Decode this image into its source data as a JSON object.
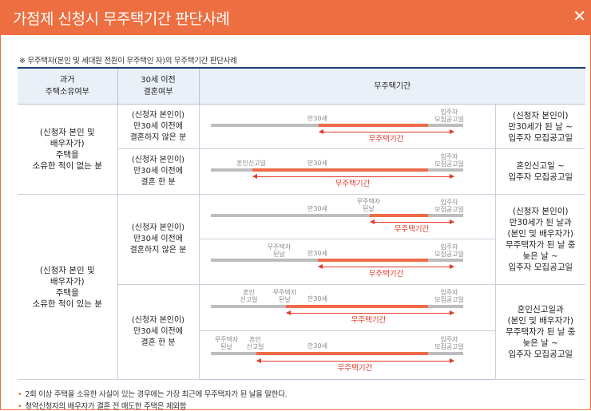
{
  "header": {
    "title": "가점제 신청시 무주택기간 판단사례",
    "close_glyph": "✕"
  },
  "note": "※ 무주택자(본인 및 세대원 전원이 무주택인 자)의 무주택기간 판단사례",
  "columns": [
    "과거\n주택소유여부",
    "30세 이전\n결혼여부",
    "무주택기간"
  ],
  "groups": [
    {
      "ownership": "(신청자 본인 및\n배우자가)\n주택을\n소유한 적이 없는 분",
      "subs": [
        {
          "marriage": "(신청자 본인이)\n만30세 이전에\n결혼하지 않은 분",
          "result": "(신청자 본인이)\n만30세가 된 날 ~\n입주자 모집공고일"
        },
        {
          "marriage": "(신청자 본인이)\n만30세 이전에\n결혼 한 분",
          "result": "혼인신고일 ~\n입주자 모집공고일"
        }
      ]
    },
    {
      "ownership": "(신청자 본인 및\n배우자가)\n주택을\n소유한 적이 있는 분",
      "subs": [
        {
          "marriage": "(신청자 본인이)\n만30세 이전에\n결혼하지 않은 분",
          "result": "(신청자 본인이)\n만30세가 된 날과\n(본인 및 배우자가)\n무주택자가 된 날 중\n늦은 날 ~\n입주자 모집공고일"
        },
        {
          "marriage": "(신청자 본인이)\n만30세 이전에\n결혼 한 분",
          "result": "혼인신고일과\n(본인 및 배우자가)\n무주택자가 된 날 중\n늦은 날 ~\n입주자 모집공고일"
        }
      ]
    }
  ],
  "timeline_labels": {
    "age30": "만30세",
    "announce": "입주자\n모집공고일",
    "marriage": "혼인신고일",
    "marriage_short": "혼인\n신고일",
    "homeless": "무주택자\n된날",
    "period": "무주택기간"
  },
  "footnotes": [
    "2회 이상 주택을 소유한 사실이 있는 경우에는 가장 최근에 무주택자가 된 날을 말한다.",
    "청약신청자의 배우자가 결혼 전 매도한 주택은 제외함"
  ]
}
